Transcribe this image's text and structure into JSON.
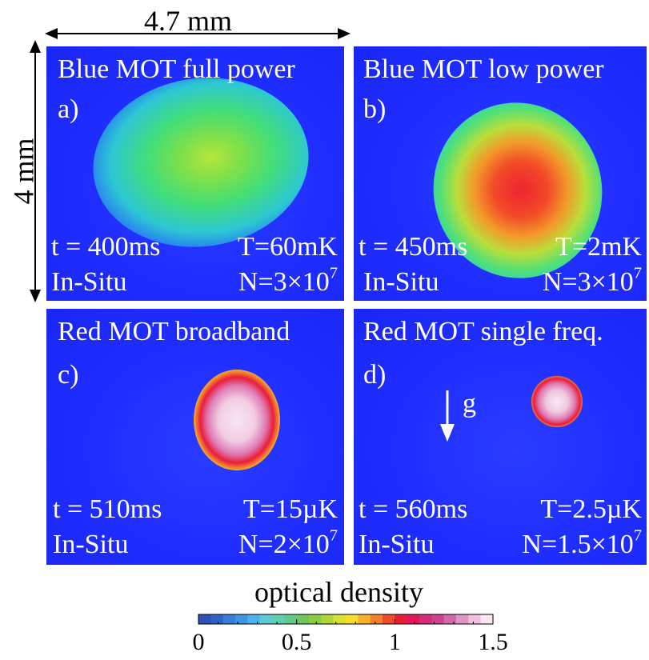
{
  "dimensions": {
    "width_label": "4.7 mm",
    "height_label": "4 mm"
  },
  "panels": [
    {
      "id": "a",
      "title": "Blue MOT full power",
      "label": "a)",
      "time": "t = 400ms",
      "temperature": "T=60mK",
      "mode": "In-Situ",
      "number_base": "N=3×10",
      "number_exp": "7",
      "peak_optical_density": 0.7
    },
    {
      "id": "b",
      "title": "Blue MOT low power",
      "label": "b)",
      "time": "t = 450ms",
      "temperature": "T=2mK",
      "mode": "In-Situ",
      "number_base": "N=3×10",
      "number_exp": "7",
      "peak_optical_density": 1.1
    },
    {
      "id": "c",
      "title": "Red MOT broadband",
      "label": "c)",
      "time": "t = 510ms",
      "temperature": "T=15µK",
      "mode": "In-Situ",
      "number_base": "N=2×10",
      "number_exp": "7",
      "peak_optical_density": 1.5
    },
    {
      "id": "d",
      "title": "Red MOT single freq.",
      "label": "d)",
      "time": "t = 560ms",
      "temperature": "T=2.5µK",
      "mode": "In-Situ",
      "number_base": "N=1.5×10",
      "number_exp": "7",
      "gravity_label": "g",
      "peak_optical_density": 1.5
    }
  ],
  "colorbar": {
    "label": "optical density",
    "min": 0,
    "max": 1.5,
    "ticks": [
      "0",
      "0.5",
      "1",
      "1.5"
    ],
    "colors": [
      "#2f4fb4",
      "#2f62c6",
      "#3a7ad8",
      "#3f95e4",
      "#4cb2ea",
      "#5cc9d6",
      "#5fcfb2",
      "#62c98a",
      "#6fc65f",
      "#8ccc45",
      "#b0d43c",
      "#d9e033",
      "#f6dc2b",
      "#f6b12a",
      "#f2812b",
      "#ee4c2b",
      "#e61e36",
      "#e0175a",
      "#d62a7a",
      "#cf4292",
      "#d268aa",
      "#e094c5",
      "#efc1de",
      "#fbe6f1"
    ]
  }
}
